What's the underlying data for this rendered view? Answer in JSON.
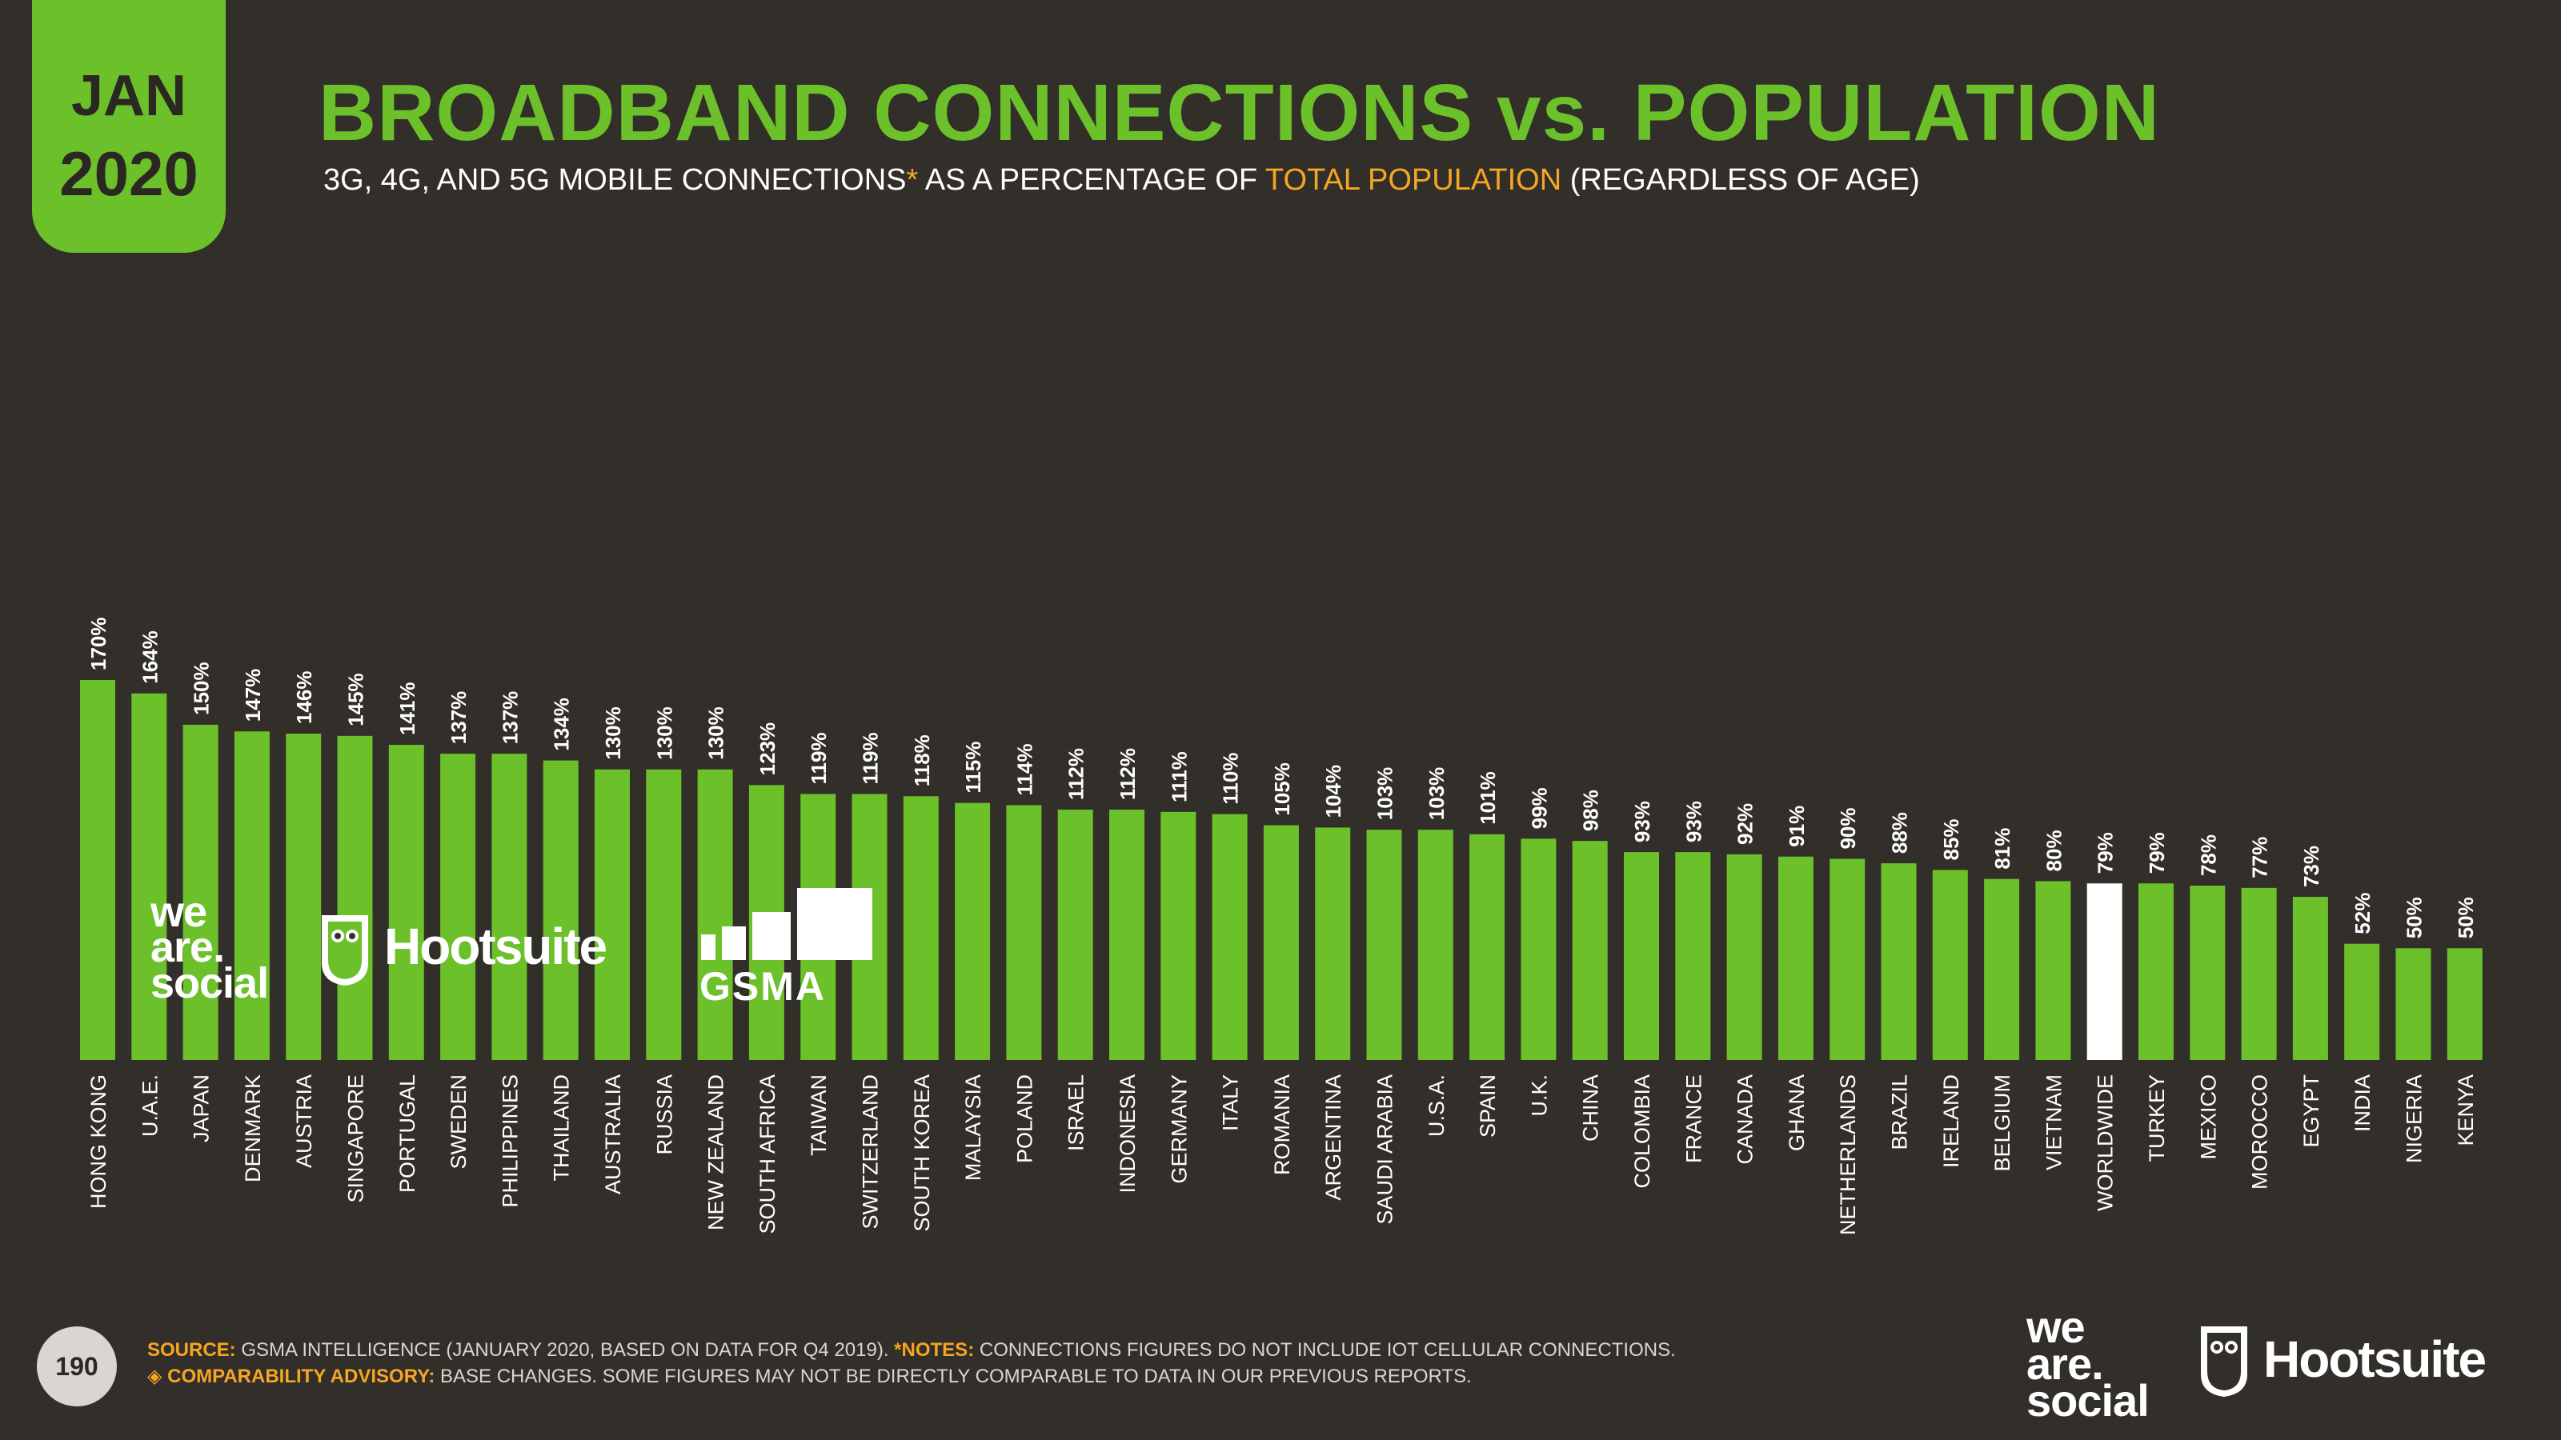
{
  "badge": {
    "month": "JAN",
    "year": "2020"
  },
  "title": "BROADBAND CONNECTIONS vs. POPULATION",
  "subtitle": {
    "part1": "3G, 4G, AND 5G MOBILE CONNECTIONS",
    "asterisk": "*",
    "part2": " AS A PERCENTAGE OF ",
    "highlight": "TOTAL POPULATION",
    "part3": " (REGARDLESS OF AGE)"
  },
  "logos": {
    "we_are_social": [
      "we",
      "are.",
      "social"
    ],
    "hootsuite": "Hootsuite",
    "gsma": "GSMA"
  },
  "page_number": "190",
  "footer": {
    "source_label": "SOURCE:",
    "source_text": " GSMA INTELLIGENCE (JANUARY 2020, BASED ON DATA FOR Q4 2019). ",
    "notes_label": "*NOTES:",
    "notes_text": " CONNECTIONS FIGURES DO NOT INCLUDE IOT CELLULAR CONNECTIONS.",
    "advisory_label": "◈ COMPARABILITY ADVISORY:",
    "advisory_text": " BASE CHANGES. SOME FIGURES MAY NOT BE DIRECTLY COMPARABLE TO DATA IN OUR PREVIOUS REPORTS."
  },
  "colors": {
    "bar": "#6cc02a",
    "highlight_bar": "#ffffff",
    "background": "#322e29",
    "accent": "#f5a623"
  },
  "chart_data": {
    "type": "bar",
    "title": "BROADBAND CONNECTIONS vs. POPULATION",
    "xlabel": "",
    "ylabel": "",
    "ylim": [
      0,
      170
    ],
    "highlight_category": "WORLDWIDE",
    "categories": [
      "HONG KONG",
      "U.A.E.",
      "JAPAN",
      "DENMARK",
      "AUSTRIA",
      "SINGAPORE",
      "PORTUGAL",
      "SWEDEN",
      "PHILIPPINES",
      "THAILAND",
      "AUSTRALIA",
      "RUSSIA",
      "NEW ZEALAND",
      "SOUTH AFRICA",
      "TAIWAN",
      "SWITZERLAND",
      "SOUTH KOREA",
      "MALAYSIA",
      "POLAND",
      "ISRAEL",
      "INDONESIA",
      "GERMANY",
      "ITALY",
      "ROMANIA",
      "ARGENTINA",
      "SAUDI ARABIA",
      "U.S.A.",
      "SPAIN",
      "U.K.",
      "CHINA",
      "COLOMBIA",
      "FRANCE",
      "CANADA",
      "GHANA",
      "NETHERLANDS",
      "BRAZIL",
      "IRELAND",
      "BELGIUM",
      "VIETNAM",
      "WORLDWIDE",
      "TURKEY",
      "MEXICO",
      "MOROCCO",
      "EGYPT",
      "INDIA",
      "NIGERIA",
      "KENYA"
    ],
    "values": [
      170,
      164,
      150,
      147,
      146,
      145,
      141,
      137,
      137,
      134,
      130,
      130,
      130,
      123,
      119,
      119,
      118,
      115,
      114,
      112,
      112,
      111,
      110,
      105,
      104,
      103,
      103,
      101,
      99,
      98,
      93,
      93,
      92,
      91,
      90,
      88,
      85,
      81,
      80,
      79,
      79,
      78,
      77,
      73,
      52,
      50,
      50
    ],
    "labels": [
      "170%",
      "164%",
      "150%",
      "147%",
      "146%",
      "145%",
      "141%",
      "137%",
      "137%",
      "134%",
      "130%",
      "130%",
      "130%",
      "123%",
      "119%",
      "119%",
      "118%",
      "115%",
      "114%",
      "112%",
      "112%",
      "111%",
      "110%",
      "105%",
      "104%",
      "103%",
      "103%",
      "101%",
      "99%",
      "98%",
      "93%",
      "93%",
      "92%",
      "91%",
      "90%",
      "88%",
      "85%",
      "81%",
      "80%",
      "79%",
      "79%",
      "78%",
      "77%",
      "73%",
      "52%",
      "50%",
      "50%"
    ]
  }
}
